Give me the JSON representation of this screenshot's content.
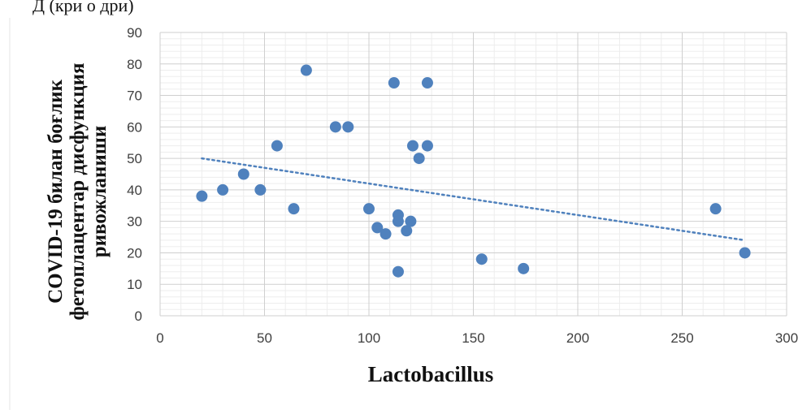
{
  "header_fragment": "Д (кри о   дри)",
  "chart_data": {
    "type": "scatter",
    "title": "",
    "xlabel": "Lactobacillus",
    "ylabel_lines": [
      "COVID-19 билан боғлик",
      "фетоплацентар дисфункция",
      "ривожланиши"
    ],
    "xlim": [
      0,
      300
    ],
    "ylim": [
      0,
      90
    ],
    "x_ticks": [
      0,
      50,
      100,
      150,
      200,
      250,
      300
    ],
    "y_ticks": [
      0,
      10,
      20,
      30,
      40,
      50,
      60,
      70,
      80,
      90
    ],
    "grid": true,
    "legend": "none",
    "trendline": {
      "type": "linear",
      "style": "dotted",
      "x": [
        20,
        280
      ],
      "y": [
        50,
        24
      ]
    },
    "marker_color": "#4f81bd",
    "trend_color": "#4f81bd",
    "points": [
      {
        "x": 20,
        "y": 38
      },
      {
        "x": 30,
        "y": 40
      },
      {
        "x": 40,
        "y": 45
      },
      {
        "x": 48,
        "y": 40
      },
      {
        "x": 56,
        "y": 54
      },
      {
        "x": 64,
        "y": 34
      },
      {
        "x": 70,
        "y": 78
      },
      {
        "x": 84,
        "y": 60
      },
      {
        "x": 90,
        "y": 60
      },
      {
        "x": 100,
        "y": 34
      },
      {
        "x": 104,
        "y": 28
      },
      {
        "x": 108,
        "y": 26
      },
      {
        "x": 112,
        "y": 74
      },
      {
        "x": 114,
        "y": 32
      },
      {
        "x": 114,
        "y": 30
      },
      {
        "x": 114,
        "y": 14
      },
      {
        "x": 118,
        "y": 27
      },
      {
        "x": 120,
        "y": 30
      },
      {
        "x": 121,
        "y": 54
      },
      {
        "x": 124,
        "y": 50
      },
      {
        "x": 128,
        "y": 74
      },
      {
        "x": 128,
        "y": 54
      },
      {
        "x": 154,
        "y": 18
      },
      {
        "x": 174,
        "y": 15
      },
      {
        "x": 266,
        "y": 34
      },
      {
        "x": 280,
        "y": 20
      }
    ]
  }
}
